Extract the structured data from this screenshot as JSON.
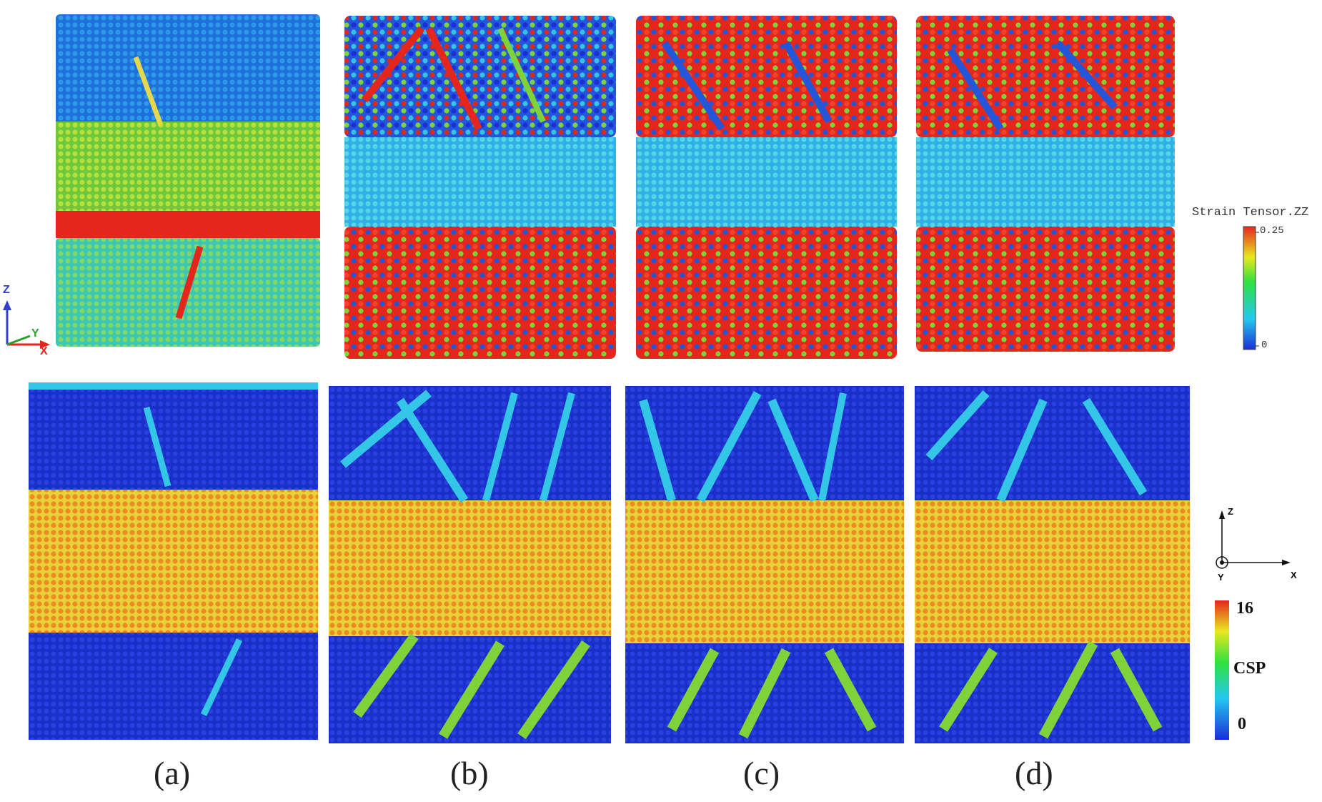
{
  "panel_labels": [
    "(a)",
    "(b)",
    "(c)",
    "(d)"
  ],
  "strain_colorbar": {
    "title": "Strain Tensor.ZZ",
    "max": "0.25",
    "min": "0"
  },
  "csp_colorbar": {
    "title": "CSP",
    "max": "16",
    "min": "0"
  },
  "axes_3d": {
    "z": "Z",
    "y": "Y",
    "x": "X"
  },
  "axes_2d": {
    "z": "Z",
    "y": "Y",
    "x": "X"
  },
  "colors": {
    "blue": "#1a2fd6",
    "cyan": "#33c6e6",
    "green": "#7fd23a",
    "yellow": "#e6e63a",
    "orange": "#f08a22",
    "red": "#e5261c"
  }
}
